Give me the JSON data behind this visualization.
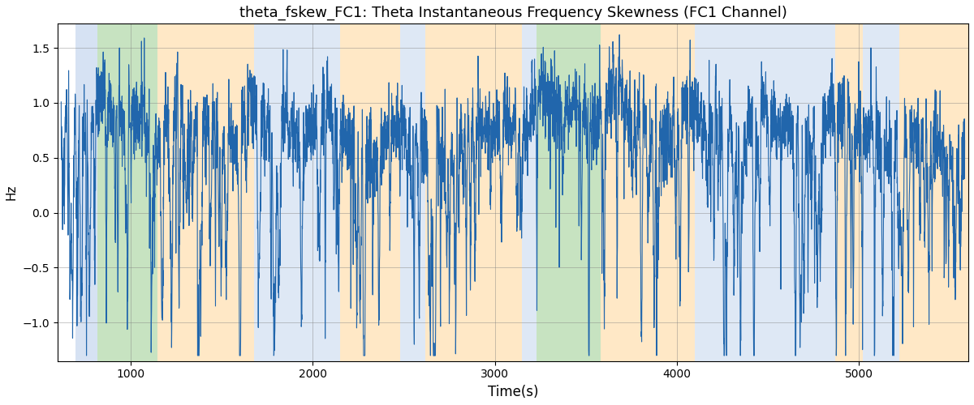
{
  "title": "theta_fskew_FC1: Theta Instantaneous Frequency Skewness (FC1 Channel)",
  "xlabel": "Time(s)",
  "ylabel": "Hz",
  "xlim": [
    600,
    5600
  ],
  "ylim": [
    -1.35,
    1.72
  ],
  "yticks": [
    -1.0,
    -0.5,
    0.0,
    0.5,
    1.0,
    1.5
  ],
  "line_color": "#2166ac",
  "line_width": 0.8,
  "bg_regions": [
    {
      "xmin": 700,
      "xmax": 820,
      "color": "#aec6e8",
      "alpha": 0.5
    },
    {
      "xmin": 820,
      "xmax": 1150,
      "color": "#90c985",
      "alpha": 0.5
    },
    {
      "xmin": 1150,
      "xmax": 1680,
      "color": "#ffd9a0",
      "alpha": 0.6
    },
    {
      "xmin": 1680,
      "xmax": 2150,
      "color": "#aec6e8",
      "alpha": 0.4
    },
    {
      "xmin": 2150,
      "xmax": 2480,
      "color": "#ffd9a0",
      "alpha": 0.6
    },
    {
      "xmin": 2480,
      "xmax": 2620,
      "color": "#aec6e8",
      "alpha": 0.4
    },
    {
      "xmin": 2620,
      "xmax": 3150,
      "color": "#ffd9a0",
      "alpha": 0.6
    },
    {
      "xmin": 3150,
      "xmax": 3230,
      "color": "#aec6e8",
      "alpha": 0.4
    },
    {
      "xmin": 3230,
      "xmax": 3580,
      "color": "#90c985",
      "alpha": 0.5
    },
    {
      "xmin": 3580,
      "xmax": 3750,
      "color": "#ffd9a0",
      "alpha": 0.6
    },
    {
      "xmin": 3750,
      "xmax": 4100,
      "color": "#ffd9a0",
      "alpha": 0.6
    },
    {
      "xmin": 4100,
      "xmax": 4580,
      "color": "#aec6e8",
      "alpha": 0.4
    },
    {
      "xmin": 4580,
      "xmax": 4870,
      "color": "#aec6e8",
      "alpha": 0.4
    },
    {
      "xmin": 4870,
      "xmax": 5020,
      "color": "#ffd9a0",
      "alpha": 0.6
    },
    {
      "xmin": 5020,
      "xmax": 5220,
      "color": "#aec6e8",
      "alpha": 0.4
    },
    {
      "xmin": 5220,
      "xmax": 5600,
      "color": "#ffd9a0",
      "alpha": 0.6
    }
  ],
  "seed": 17,
  "n_points": 4960,
  "t_start": 620,
  "t_end": 5580
}
